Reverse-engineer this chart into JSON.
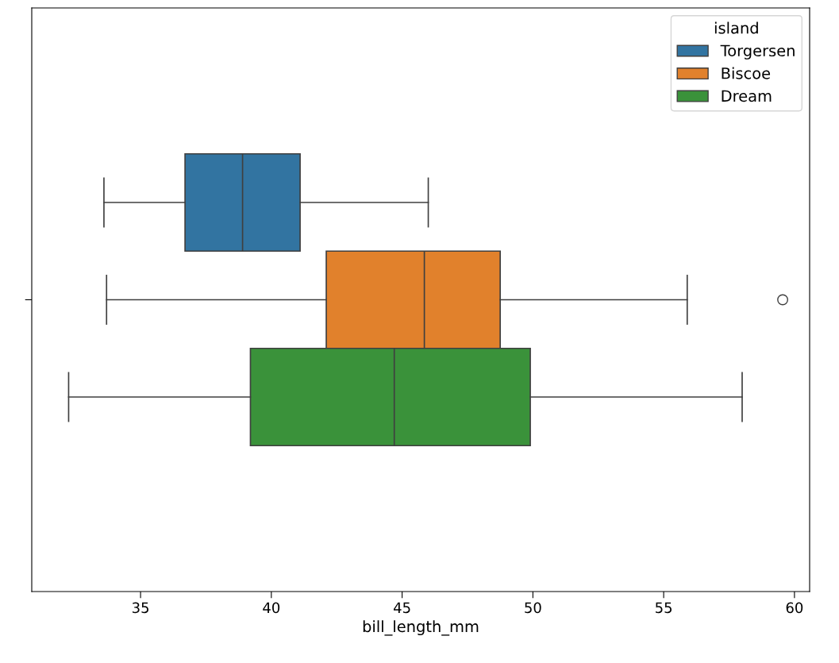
{
  "chart_data": {
    "type": "box",
    "orientation": "horizontal",
    "xlabel": "bill_length_mm",
    "legend_title": "island",
    "legend": "top right",
    "grid": false,
    "categories": [
      null
    ],
    "xlim": [
      30.84,
      60.58
    ],
    "xticks": [
      35,
      40,
      45,
      50,
      55,
      60
    ],
    "series": [
      {
        "name": "Torgersen",
        "color": "#3274a1",
        "boxes": [
          {
            "low": 33.6,
            "q1": 36.7,
            "median": 38.9,
            "q3": 41.1,
            "high": 46.0
          }
        ]
      },
      {
        "name": "Biscoe",
        "color": "#e1812c",
        "boxes": [
          {
            "low": 33.7,
            "q1": 42.1,
            "median": 45.85,
            "q3": 48.75,
            "high": 55.9,
            "outliers": [
              59.55
            ]
          }
        ]
      },
      {
        "name": "Dream",
        "color": "#3a923a",
        "boxes": [
          {
            "low": 32.25,
            "q1": 39.2,
            "median": 44.7,
            "q3": 49.9,
            "high": 58.0
          }
        ]
      }
    ]
  }
}
